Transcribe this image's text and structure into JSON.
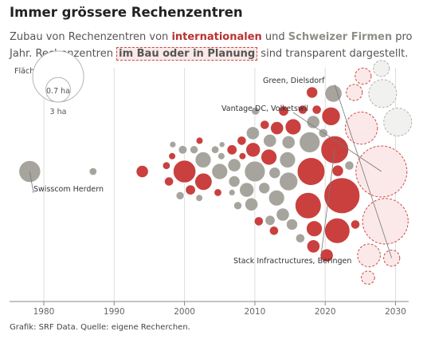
{
  "header": {
    "title": "Immer grössere Rechenzentren",
    "subtitle_part1": "Zubau von Rechenzentren von ",
    "subtitle_intl": "internationalen",
    "subtitle_part2": " und ",
    "subtitle_swiss": "Schweizer Firmen",
    "subtitle_part3": " pro Jahr. Rechenzentren ",
    "subtitle_planned": "im Bau oder in Planung",
    "subtitle_part4": " sind transparent dargestellt."
  },
  "source": "Grafik: SRF Data. Quelle: eigene Recherchen.",
  "colors": {
    "international": "#c9403e",
    "swiss": "#a6a49d",
    "international_planned_fill": "#fbe9e9",
    "international_planned_stroke": "#cf4a48",
    "swiss_planned_fill": "#f1f1ef",
    "swiss_planned_stroke": "#b4b2ab",
    "grid": "#dddddd",
    "axis": "#888888"
  },
  "chart_data": {
    "type": "scatter",
    "encoding": "beeswarm bubble chart: x = year, bubble area = floor area",
    "xlabel": "",
    "ylabel": "",
    "x_ticks": [
      1980,
      1990,
      2000,
      2010,
      2020,
      2030
    ],
    "xlim": [
      1976,
      2032
    ],
    "size_legend": {
      "label": "Fläche:",
      "items": [
        {
          "value": 3,
          "label": "3 ha"
        },
        {
          "value": 0.7,
          "label": "0.7 ha"
        }
      ]
    },
    "categories": [
      "international",
      "swiss"
    ],
    "annotations": [
      {
        "text": "Green, Dielsdorf",
        "year": 2027
      },
      {
        "text": "Vantage DC, Volketswil",
        "year": 2028
      },
      {
        "text": "Swisscom Herdern",
        "year": 1978
      },
      {
        "text": "Stack Infractructures, Beringen",
        "year": 2021
      }
    ],
    "bubbles": [
      {
        "year": 1978,
        "size": 0.55,
        "type": "swiss",
        "planned": false
      },
      {
        "year": 1987,
        "size": 0.07,
        "type": "swiss",
        "planned": false
      },
      {
        "year": 1994,
        "size": 0.18,
        "type": "international",
        "planned": false
      },
      {
        "year": 1998,
        "size": 0.1,
        "type": "international",
        "planned": false
      },
      {
        "year": 1998,
        "size": 0.07,
        "type": "international",
        "planned": false
      },
      {
        "year": 1999,
        "size": 0.05,
        "type": "swiss",
        "planned": false
      },
      {
        "year": 1999,
        "size": 0.06,
        "type": "international",
        "planned": false
      },
      {
        "year": 2000,
        "size": 0.09,
        "type": "swiss",
        "planned": false
      },
      {
        "year": 2000,
        "size": 0.6,
        "type": "international",
        "planned": false
      },
      {
        "year": 2000,
        "size": 0.08,
        "type": "swiss",
        "planned": false
      },
      {
        "year": 2001,
        "size": 0.12,
        "type": "international",
        "planned": false
      },
      {
        "year": 2001,
        "size": 0.08,
        "type": "swiss",
        "planned": false
      },
      {
        "year": 2002,
        "size": 0.35,
        "type": "international",
        "planned": false
      },
      {
        "year": 2002,
        "size": 0.06,
        "type": "swiss",
        "planned": false
      },
      {
        "year": 2002,
        "size": 0.06,
        "type": "international",
        "planned": false
      },
      {
        "year": 2003,
        "size": 0.3,
        "type": "swiss",
        "planned": false
      },
      {
        "year": 2004,
        "size": 0.07,
        "type": "swiss",
        "planned": false
      },
      {
        "year": 2004,
        "size": 0.07,
        "type": "international",
        "planned": false
      },
      {
        "year": 2005,
        "size": 0.3,
        "type": "swiss",
        "planned": false
      },
      {
        "year": 2006,
        "size": 0.05,
        "type": "swiss",
        "planned": false
      },
      {
        "year": 2006,
        "size": 0.06,
        "type": "swiss",
        "planned": false
      },
      {
        "year": 2006,
        "size": 0.04,
        "type": "swiss",
        "planned": false
      },
      {
        "year": 2007,
        "size": 0.12,
        "type": "international",
        "planned": false
      },
      {
        "year": 2007,
        "size": 0.15,
        "type": "swiss",
        "planned": false
      },
      {
        "year": 2007,
        "size": 0.2,
        "type": "swiss",
        "planned": false
      },
      {
        "year": 2008,
        "size": 0.08,
        "type": "swiss",
        "planned": false
      },
      {
        "year": 2008,
        "size": 0.1,
        "type": "international",
        "planned": false
      },
      {
        "year": 2009,
        "size": 0.2,
        "type": "swiss",
        "planned": false
      },
      {
        "year": 2009,
        "size": 0.25,
        "type": "swiss",
        "planned": false
      },
      {
        "year": 2009,
        "size": 0.06,
        "type": "international",
        "planned": false
      },
      {
        "year": 2010,
        "size": 0.5,
        "type": "swiss",
        "planned": false
      },
      {
        "year": 2010,
        "size": 0.25,
        "type": "international",
        "planned": false
      },
      {
        "year": 2010,
        "size": 0.2,
        "type": "swiss",
        "planned": false
      },
      {
        "year": 2010,
        "size": 0.1,
        "type": "international",
        "planned": false
      },
      {
        "year": 2011,
        "size": 0.15,
        "type": "swiss",
        "planned": false
      },
      {
        "year": 2011,
        "size": 0.1,
        "type": "international",
        "planned": false
      },
      {
        "year": 2011,
        "size": 0.08,
        "type": "swiss",
        "planned": false
      },
      {
        "year": 2012,
        "size": 0.2,
        "type": "swiss",
        "planned": false
      },
      {
        "year": 2012,
        "size": 0.15,
        "type": "swiss",
        "planned": false
      },
      {
        "year": 2012,
        "size": 0.3,
        "type": "international",
        "planned": false
      },
      {
        "year": 2013,
        "size": 0.12,
        "type": "swiss",
        "planned": false
      },
      {
        "year": 2013,
        "size": 0.3,
        "type": "swiss",
        "planned": false
      },
      {
        "year": 2013,
        "size": 0.1,
        "type": "international",
        "planned": false
      },
      {
        "year": 2014,
        "size": 0.15,
        "type": "swiss",
        "planned": false
      },
      {
        "year": 2014,
        "size": 0.2,
        "type": "swiss",
        "planned": false
      },
      {
        "year": 2014,
        "size": 0.2,
        "type": "international",
        "planned": false
      },
      {
        "year": 2015,
        "size": 0.3,
        "type": "swiss",
        "planned": false
      },
      {
        "year": 2015,
        "size": 0.12,
        "type": "international",
        "planned": false
      },
      {
        "year": 2015,
        "size": 0.4,
        "type": "swiss",
        "planned": false
      },
      {
        "year": 2016,
        "size": 0.1,
        "type": "international",
        "planned": false
      },
      {
        "year": 2016,
        "size": 0.2,
        "type": "swiss",
        "planned": false
      },
      {
        "year": 2016,
        "size": 0.1,
        "type": "swiss",
        "planned": false
      },
      {
        "year": 2017,
        "size": 0.2,
        "type": "swiss",
        "planned": false
      },
      {
        "year": 2017,
        "size": 0.3,
        "type": "international",
        "planned": false
      },
      {
        "year": 2018,
        "size": 0.9,
        "type": "international",
        "planned": false
      },
      {
        "year": 2018,
        "size": 0.8,
        "type": "international",
        "planned": false
      },
      {
        "year": 2018,
        "size": 0.1,
        "type": "international",
        "planned": false
      },
      {
        "year": 2019,
        "size": 0.5,
        "type": "swiss",
        "planned": false
      },
      {
        "year": 2019,
        "size": 0.2,
        "type": "international",
        "planned": false
      },
      {
        "year": 2020,
        "size": 0.2,
        "type": "international",
        "planned": false
      },
      {
        "year": 2020,
        "size": 0.1,
        "type": "swiss",
        "planned": false
      },
      {
        "year": 2020,
        "size": 0.15,
        "type": "international",
        "planned": false
      },
      {
        "year": 2021,
        "size": 0.3,
        "type": "international",
        "planned": false
      },
      {
        "year": 2021,
        "size": 0.4,
        "type": "international",
        "planned": false
      },
      {
        "year": 2021,
        "size": 0.9,
        "type": "international",
        "planned": false
      },
      {
        "year": 2022,
        "size": 0.75,
        "type": "international",
        "planned": false
      },
      {
        "year": 2022,
        "size": 0.15,
        "type": "international",
        "planned": false
      },
      {
        "year": 2022,
        "size": 0.35,
        "type": "swiss",
        "planned": false
      },
      {
        "year": 2023,
        "size": 1.5,
        "type": "international",
        "planned": false
      },
      {
        "year": 2023,
        "size": 0.1,
        "type": "international",
        "planned": false
      },
      {
        "year": 2024,
        "size": 0.1,
        "type": "swiss",
        "planned": false
      },
      {
        "year": 2025,
        "size": 0.2,
        "type": "international",
        "planned": true
      },
      {
        "year": 2026,
        "size": 1.2,
        "type": "international",
        "planned": true
      },
      {
        "year": 2026,
        "size": 0.6,
        "type": "international",
        "planned": true
      },
      {
        "year": 2026,
        "size": 0.3,
        "type": "international",
        "planned": true
      },
      {
        "year": 2026,
        "size": 0.3,
        "type": "international",
        "planned": true
      },
      {
        "year": 2027,
        "size": 0.3,
        "type": "international",
        "planned": true
      },
      {
        "year": 2027,
        "size": 0.3,
        "type": "swiss",
        "planned": true
      },
      {
        "year": 2028,
        "size": 3.0,
        "type": "international",
        "planned": true
      },
      {
        "year": 2028,
        "size": 2.4,
        "type": "international",
        "planned": true
      },
      {
        "year": 2029,
        "size": 0.9,
        "type": "swiss",
        "planned": true
      },
      {
        "year": 2029,
        "size": 0.9,
        "type": "swiss",
        "planned": true
      }
    ]
  }
}
